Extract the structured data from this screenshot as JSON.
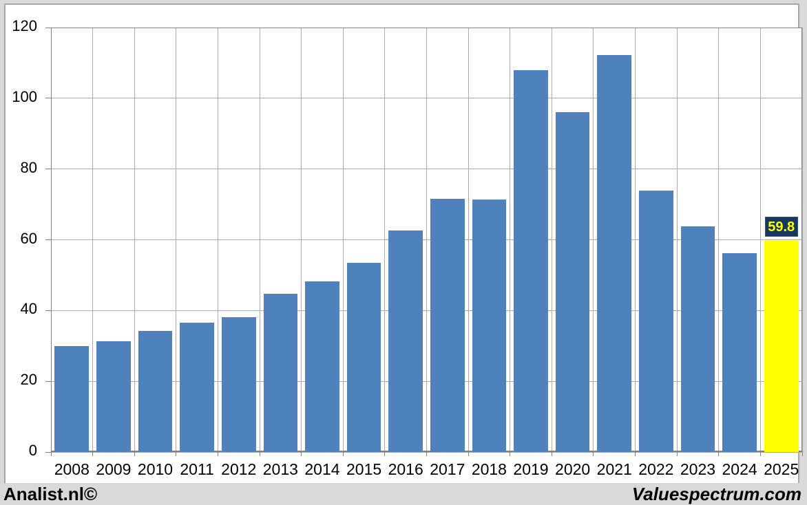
{
  "chart_data": {
    "type": "bar",
    "title": "",
    "xlabel": "",
    "ylabel": "",
    "categories": [
      "2008",
      "2009",
      "2010",
      "2011",
      "2012",
      "2013",
      "2014",
      "2015",
      "2016",
      "2017",
      "2018",
      "2019",
      "2020",
      "2021",
      "2022",
      "2023",
      "2024",
      "2025"
    ],
    "values": [
      30,
      31.3,
      34.2,
      36.5,
      38.2,
      44.7,
      48.3,
      53.4,
      62.7,
      71.5,
      71.3,
      108,
      96,
      112.2,
      74,
      63.8,
      56.2,
      59.8
    ],
    "ylim": [
      0,
      120
    ],
    "yticks": [
      0,
      20,
      40,
      60,
      80,
      100,
      120
    ],
    "grid": true,
    "legend": "none",
    "highlight": {
      "category": "2025",
      "index": 17,
      "label": "59.8"
    },
    "colors": {
      "bar": "#4F81BD",
      "highlight_bar": "#FFFF00",
      "callout_bg": "#17375E",
      "callout_text": "#FFFF00",
      "gridline": "#ABABAB",
      "axis": "#808080",
      "plot_bg": "#FFFFFF",
      "page_bg": "#D9D9D9",
      "tick_text": "#000000"
    }
  },
  "footer": {
    "left": "Analist.nl©",
    "right": "Valuespectrum.com"
  }
}
